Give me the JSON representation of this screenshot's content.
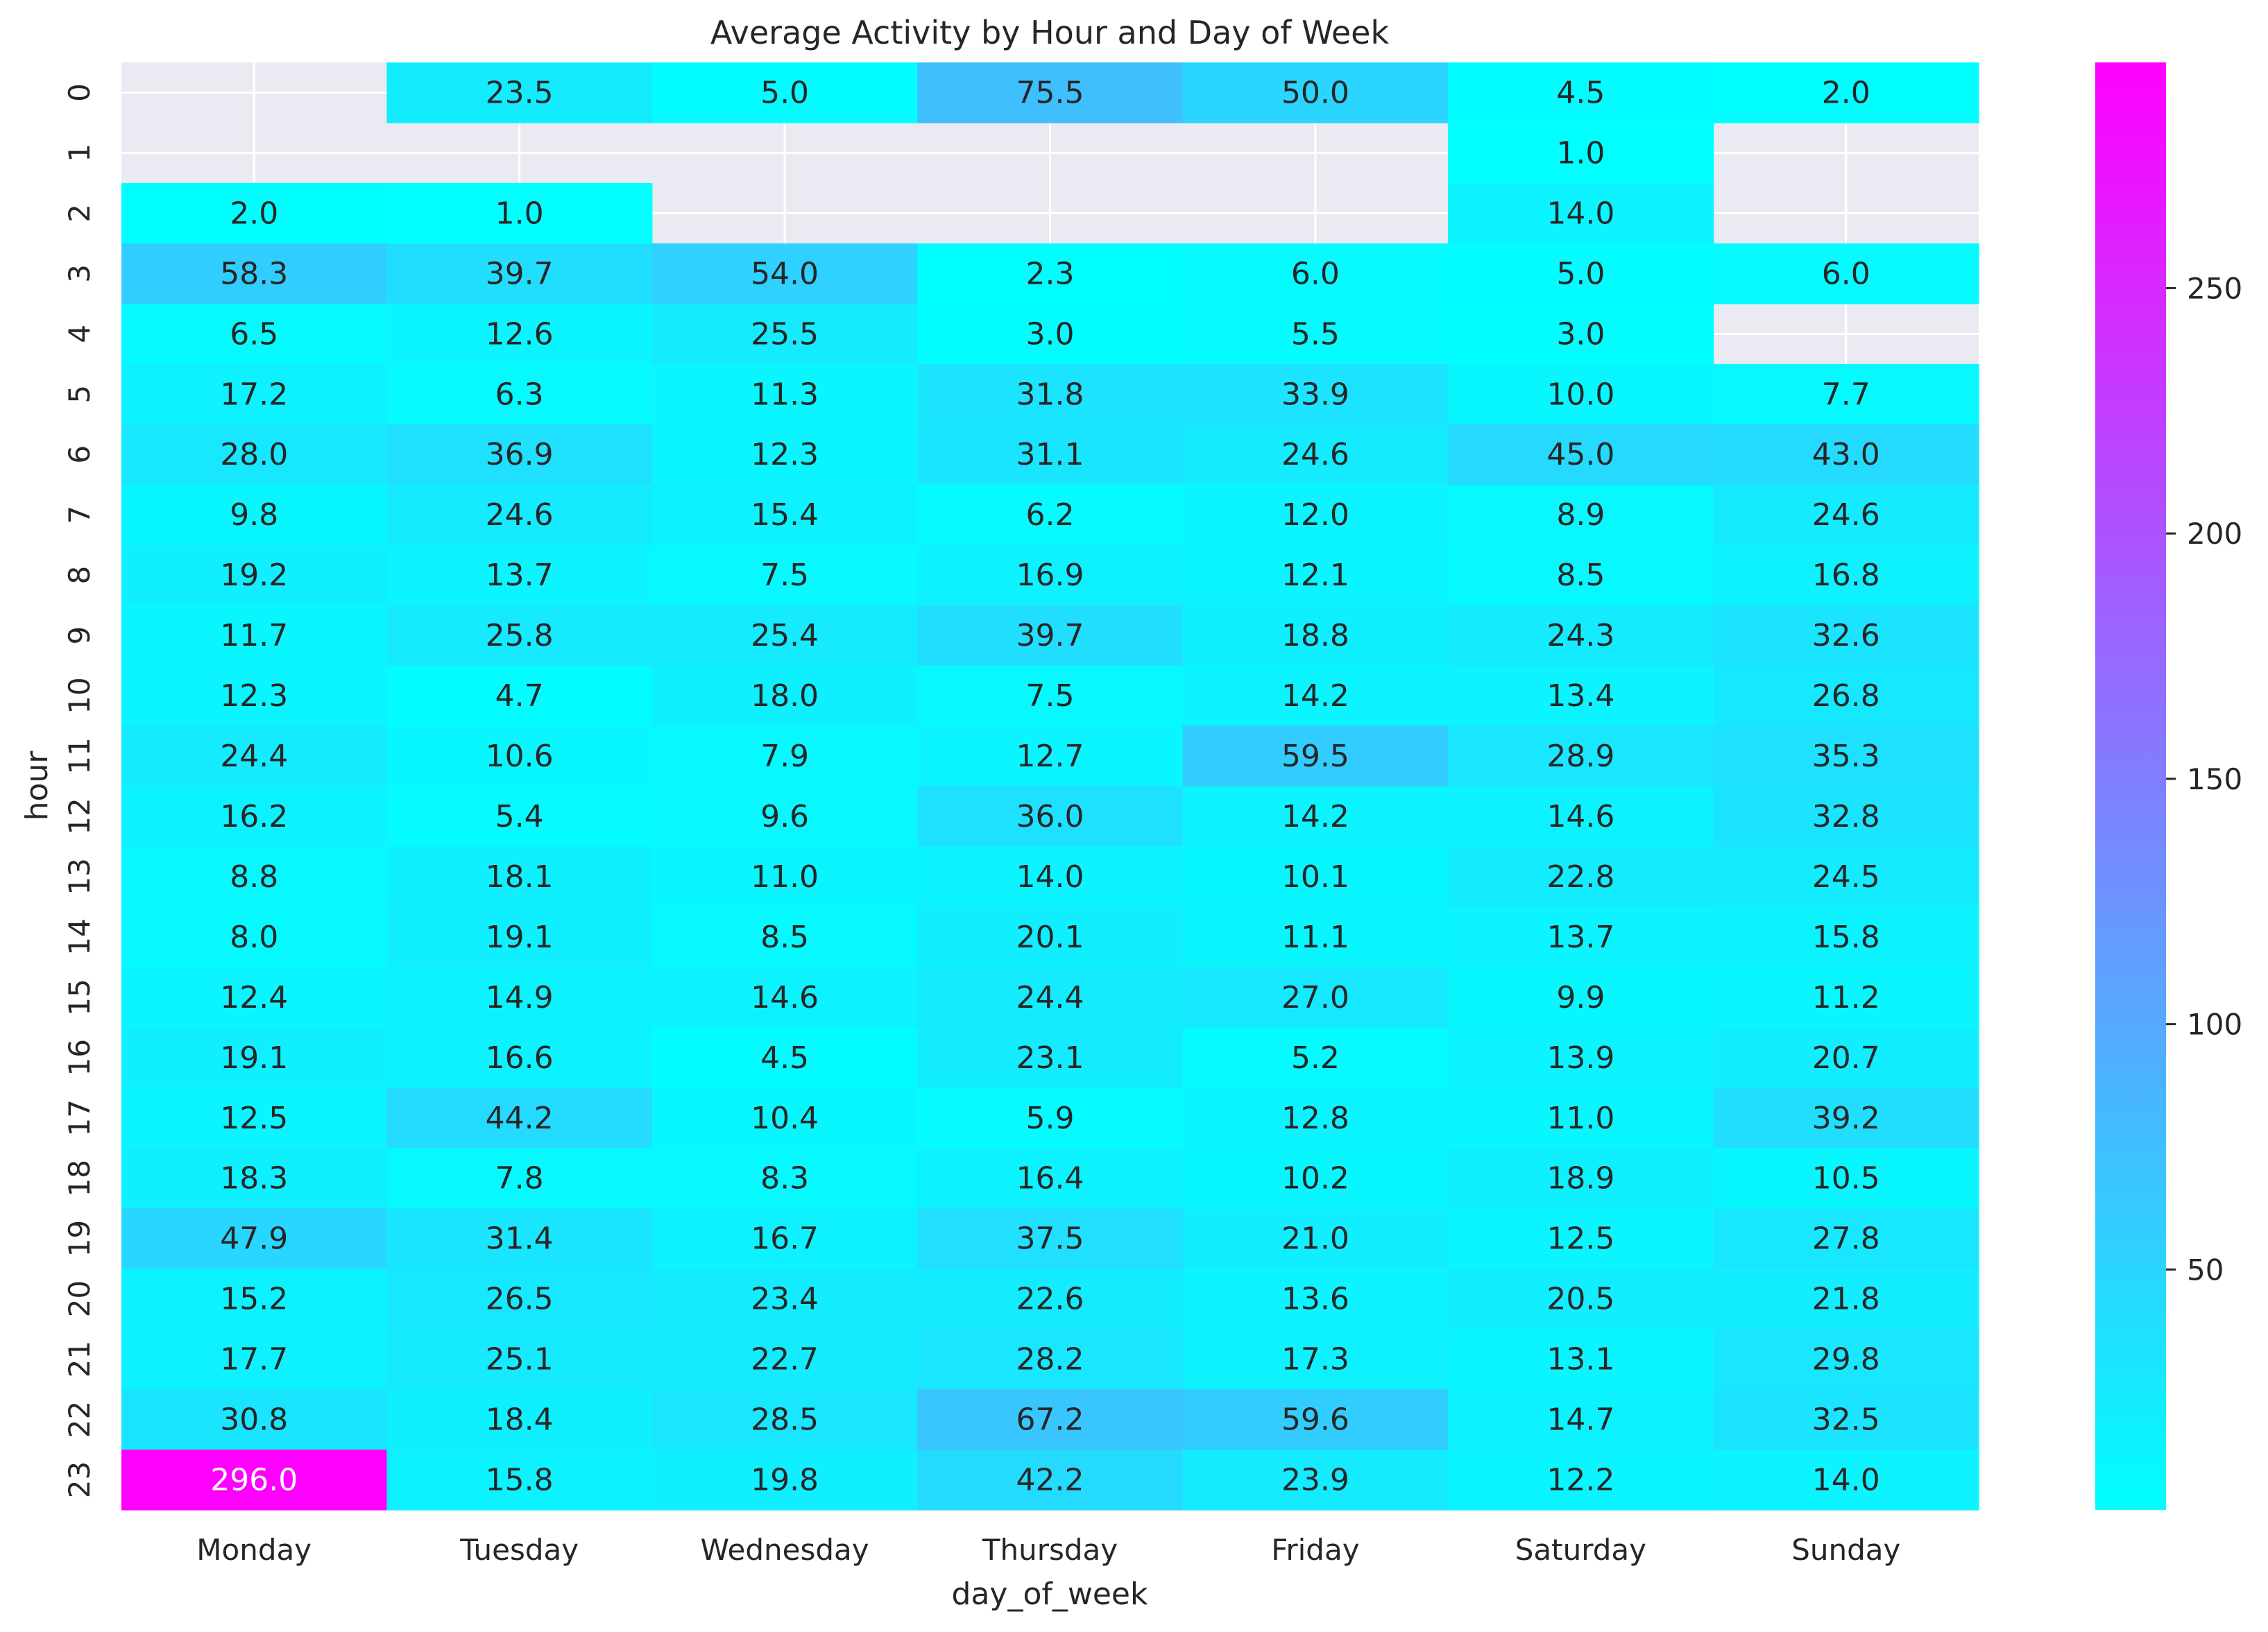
{
  "chart_data": {
    "type": "heatmap",
    "title": "Average Activity by Hour and Day of Week",
    "xlabel": "day_of_week",
    "ylabel": "hour",
    "x_categories": [
      "Monday",
      "Tuesday",
      "Wednesday",
      "Thursday",
      "Friday",
      "Saturday",
      "Sunday"
    ],
    "y_categories": [
      "0",
      "1",
      "2",
      "3",
      "4",
      "5",
      "6",
      "7",
      "8",
      "9",
      "10",
      "11",
      "12",
      "13",
      "14",
      "15",
      "16",
      "17",
      "18",
      "19",
      "20",
      "21",
      "22",
      "23"
    ],
    "values": [
      [
        null,
        23.5,
        5.0,
        75.5,
        50.0,
        4.5,
        2.0
      ],
      [
        null,
        null,
        null,
        null,
        null,
        1.0,
        null
      ],
      [
        2.0,
        1.0,
        null,
        null,
        null,
        14.0,
        null
      ],
      [
        58.3,
        39.7,
        54.0,
        2.3,
        6.0,
        5.0,
        6.0
      ],
      [
        6.5,
        12.6,
        25.5,
        3.0,
        5.5,
        3.0,
        null
      ],
      [
        17.2,
        6.3,
        11.3,
        31.8,
        33.9,
        10.0,
        7.7
      ],
      [
        28.0,
        36.9,
        12.3,
        31.1,
        24.6,
        45.0,
        43.0
      ],
      [
        9.8,
        24.6,
        15.4,
        6.2,
        12.0,
        8.9,
        24.6
      ],
      [
        19.2,
        13.7,
        7.5,
        16.9,
        12.1,
        8.5,
        16.8
      ],
      [
        11.7,
        25.8,
        25.4,
        39.7,
        18.8,
        24.3,
        32.6
      ],
      [
        12.3,
        4.7,
        18.0,
        7.5,
        14.2,
        13.4,
        26.8
      ],
      [
        24.4,
        10.6,
        7.9,
        12.7,
        59.5,
        28.9,
        35.3
      ],
      [
        16.2,
        5.4,
        9.6,
        36.0,
        14.2,
        14.6,
        32.8
      ],
      [
        8.8,
        18.1,
        11.0,
        14.0,
        10.1,
        22.8,
        24.5
      ],
      [
        8.0,
        19.1,
        8.5,
        20.1,
        11.1,
        13.7,
        15.8
      ],
      [
        12.4,
        14.9,
        14.6,
        24.4,
        27.0,
        9.9,
        11.2
      ],
      [
        19.1,
        16.6,
        4.5,
        23.1,
        5.2,
        13.9,
        20.7
      ],
      [
        12.5,
        44.2,
        10.4,
        5.9,
        12.8,
        11.0,
        39.2
      ],
      [
        18.3,
        7.8,
        8.3,
        16.4,
        10.2,
        18.9,
        10.5
      ],
      [
        47.9,
        31.4,
        16.7,
        37.5,
        21.0,
        12.5,
        27.8
      ],
      [
        15.2,
        26.5,
        23.4,
        22.6,
        13.6,
        20.5,
        21.8
      ],
      [
        17.7,
        25.1,
        22.7,
        28.2,
        17.3,
        13.1,
        29.8
      ],
      [
        30.8,
        18.4,
        28.5,
        67.2,
        59.6,
        14.7,
        32.5
      ],
      [
        296.0,
        15.8,
        19.8,
        42.2,
        23.9,
        12.2,
        14.0
      ]
    ],
    "colormap": "cool",
    "vmin": 1.0,
    "vmax": 296.0,
    "colorbar_ticks": [
      "50",
      "100",
      "150",
      "200",
      "250"
    ],
    "missing_color": "#eaeaf2",
    "grid": true,
    "legend": "colorbar-right"
  }
}
